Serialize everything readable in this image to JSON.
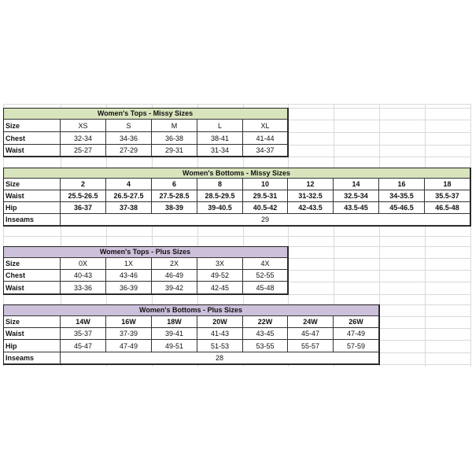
{
  "colors": {
    "green_header": "#d8e4bc",
    "purple_header": "#ccc0da",
    "grid": "#d9d9d9"
  },
  "tables": [
    {
      "title": "Women's Tops - Missy Sizes",
      "header_color": "green",
      "rows": [
        {
          "label": "Size",
          "values": [
            "XS",
            "S",
            "M",
            "L",
            "XL"
          ]
        },
        {
          "label": "Chest",
          "values": [
            "32-34",
            "34-36",
            "36-38",
            "38-41",
            "41-44"
          ]
        },
        {
          "label": "Waist",
          "values": [
            "25-27",
            "27-29",
            "29-31",
            "31-34",
            "34-37"
          ]
        }
      ]
    },
    {
      "title": "Women's Bottoms - Missy Sizes",
      "header_color": "green",
      "rows": [
        {
          "label": "Size",
          "values": [
            "2",
            "4",
            "6",
            "8",
            "10",
            "12",
            "14",
            "16",
            "18"
          ]
        },
        {
          "label": "Waist",
          "values": [
            "25.5-26.5",
            "26.5-27.5",
            "27.5-28.5",
            "28.5-29.5",
            "29.5-31",
            "31-32.5",
            "32.5-34",
            "34-35.5",
            "35.5-37"
          ]
        },
        {
          "label": "Hip",
          "values": [
            "36-37",
            "37-38",
            "38-39",
            "39-40.5",
            "40.5-42",
            "42-43.5",
            "43.5-45",
            "45-46.5",
            "46.5-48"
          ]
        },
        {
          "label": "Inseams",
          "merged": "29"
        }
      ]
    },
    {
      "title": "Women's Tops - Plus Sizes",
      "header_color": "purple",
      "rows": [
        {
          "label": "Size",
          "values": [
            "0X",
            "1X",
            "2X",
            "3X",
            "4X"
          ]
        },
        {
          "label": "Chest",
          "values": [
            "40-43",
            "43-46",
            "46-49",
            "49-52",
            "52-55"
          ]
        },
        {
          "label": "Waist",
          "values": [
            "33-36",
            "36-39",
            "39-42",
            "42-45",
            "45-48"
          ]
        }
      ]
    },
    {
      "title": "Women's Bottoms - Plus Sizes",
      "header_color": "purple",
      "rows": [
        {
          "label": "Size",
          "values": [
            "14W",
            "16W",
            "18W",
            "20W",
            "22W",
            "24W",
            "26W"
          ]
        },
        {
          "label": "Waist",
          "values": [
            "35-37",
            "37-39",
            "39-41",
            "41-43",
            "43-45",
            "45-47",
            "47-49"
          ]
        },
        {
          "label": "Hip",
          "values": [
            "45-47",
            "47-49",
            "49-51",
            "51-53",
            "53-55",
            "55-57",
            "57-59"
          ]
        },
        {
          "label": "Inseams",
          "merged": "28"
        }
      ]
    }
  ]
}
